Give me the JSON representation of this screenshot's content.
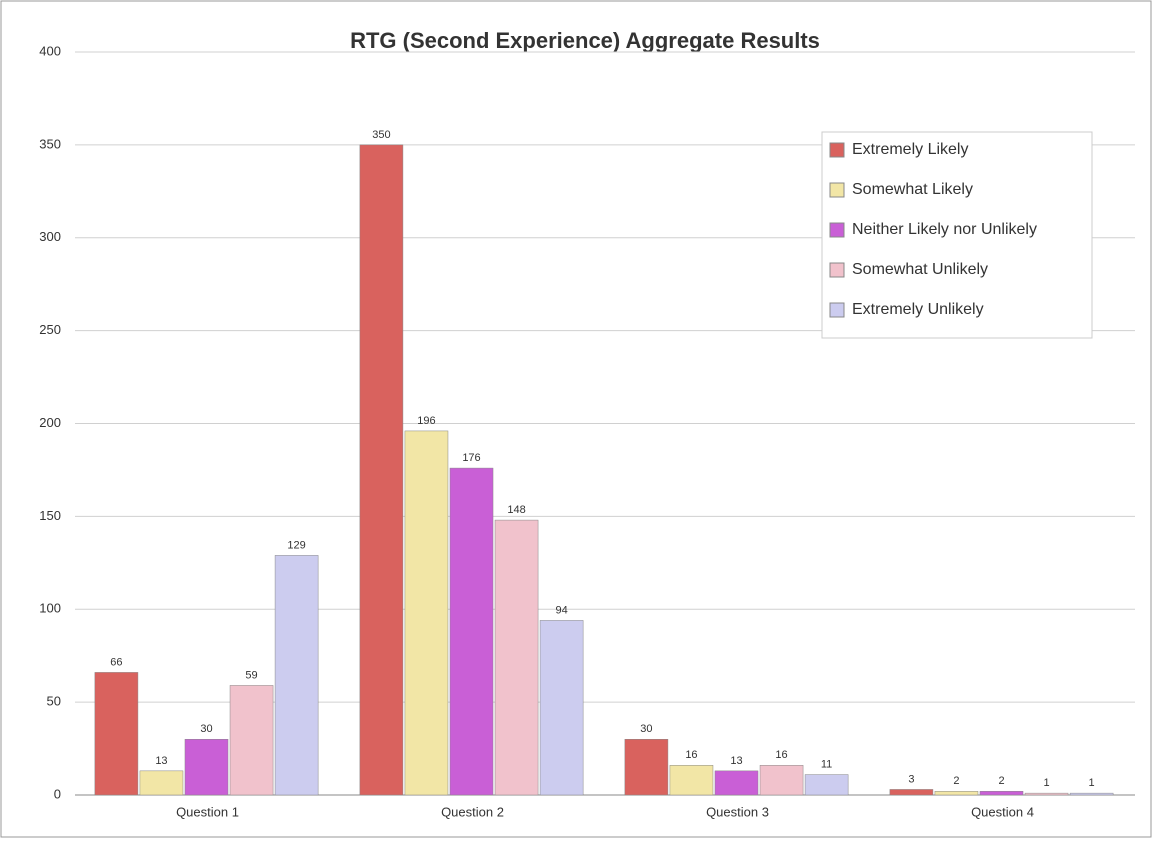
{
  "chart_data": {
    "type": "bar",
    "title": "RTG (Second Experience) Aggregate Results",
    "categories": [
      "Question 1",
      "Question 2",
      "Question 3",
      "Question 4"
    ],
    "series": [
      {
        "name": "Extremely Likely",
        "color": "#d9625e",
        "values": [
          66,
          350,
          30,
          3
        ]
      },
      {
        "name": "Somewhat Likely",
        "color": "#f2e6a6",
        "values": [
          13,
          196,
          16,
          2
        ]
      },
      {
        "name": "Neither Likely nor Unlikely",
        "color": "#c95fd6",
        "values": [
          30,
          176,
          13,
          2
        ]
      },
      {
        "name": "Somewhat Unlikely",
        "color": "#f1c2cc",
        "values": [
          59,
          148,
          16,
          1
        ]
      },
      {
        "name": "Extremely Unlikely",
        "color": "#ccccef",
        "values": [
          129,
          94,
          11,
          1
        ]
      }
    ],
    "ylim": [
      0,
      400
    ],
    "yticks": [
      0,
      50,
      100,
      150,
      200,
      250,
      300,
      350,
      400
    ],
    "grid": true,
    "legend": "upper right"
  }
}
